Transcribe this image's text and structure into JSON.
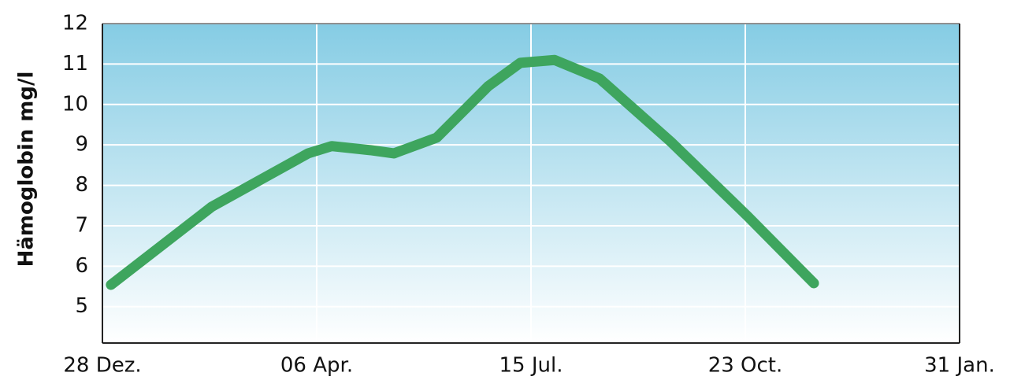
{
  "chart_data": {
    "type": "line",
    "y_label": "Hämoglobin mg/l",
    "x": [
      0.04,
      0.51,
      0.96,
      1.07,
      1.25,
      1.36,
      1.56,
      1.8,
      1.95,
      2.11,
      2.32,
      2.65,
      3.01,
      3.32
    ],
    "xlim": [
      0,
      4
    ],
    "xticks": [
      {
        "value": 0,
        "label": "28 Dez."
      },
      {
        "value": 1,
        "label": "06 Apr."
      },
      {
        "value": 2,
        "label": "15 Jul."
      },
      {
        "value": 3,
        "label": "23 Oct."
      },
      {
        "value": 4,
        "label": "31 Jan."
      }
    ],
    "series": [
      {
        "color": "#3ea55e",
        "values": [
          5.54,
          7.47,
          8.79,
          8.97,
          8.87,
          8.79,
          9.18,
          10.45,
          11.03,
          11.1,
          10.64,
          9.09,
          7.24,
          5.58
        ]
      }
    ],
    "ylim": [
      4.1,
      12
    ],
    "yticks": [
      5,
      6,
      7,
      8,
      9,
      10,
      11,
      12
    ],
    "grid": true
  }
}
